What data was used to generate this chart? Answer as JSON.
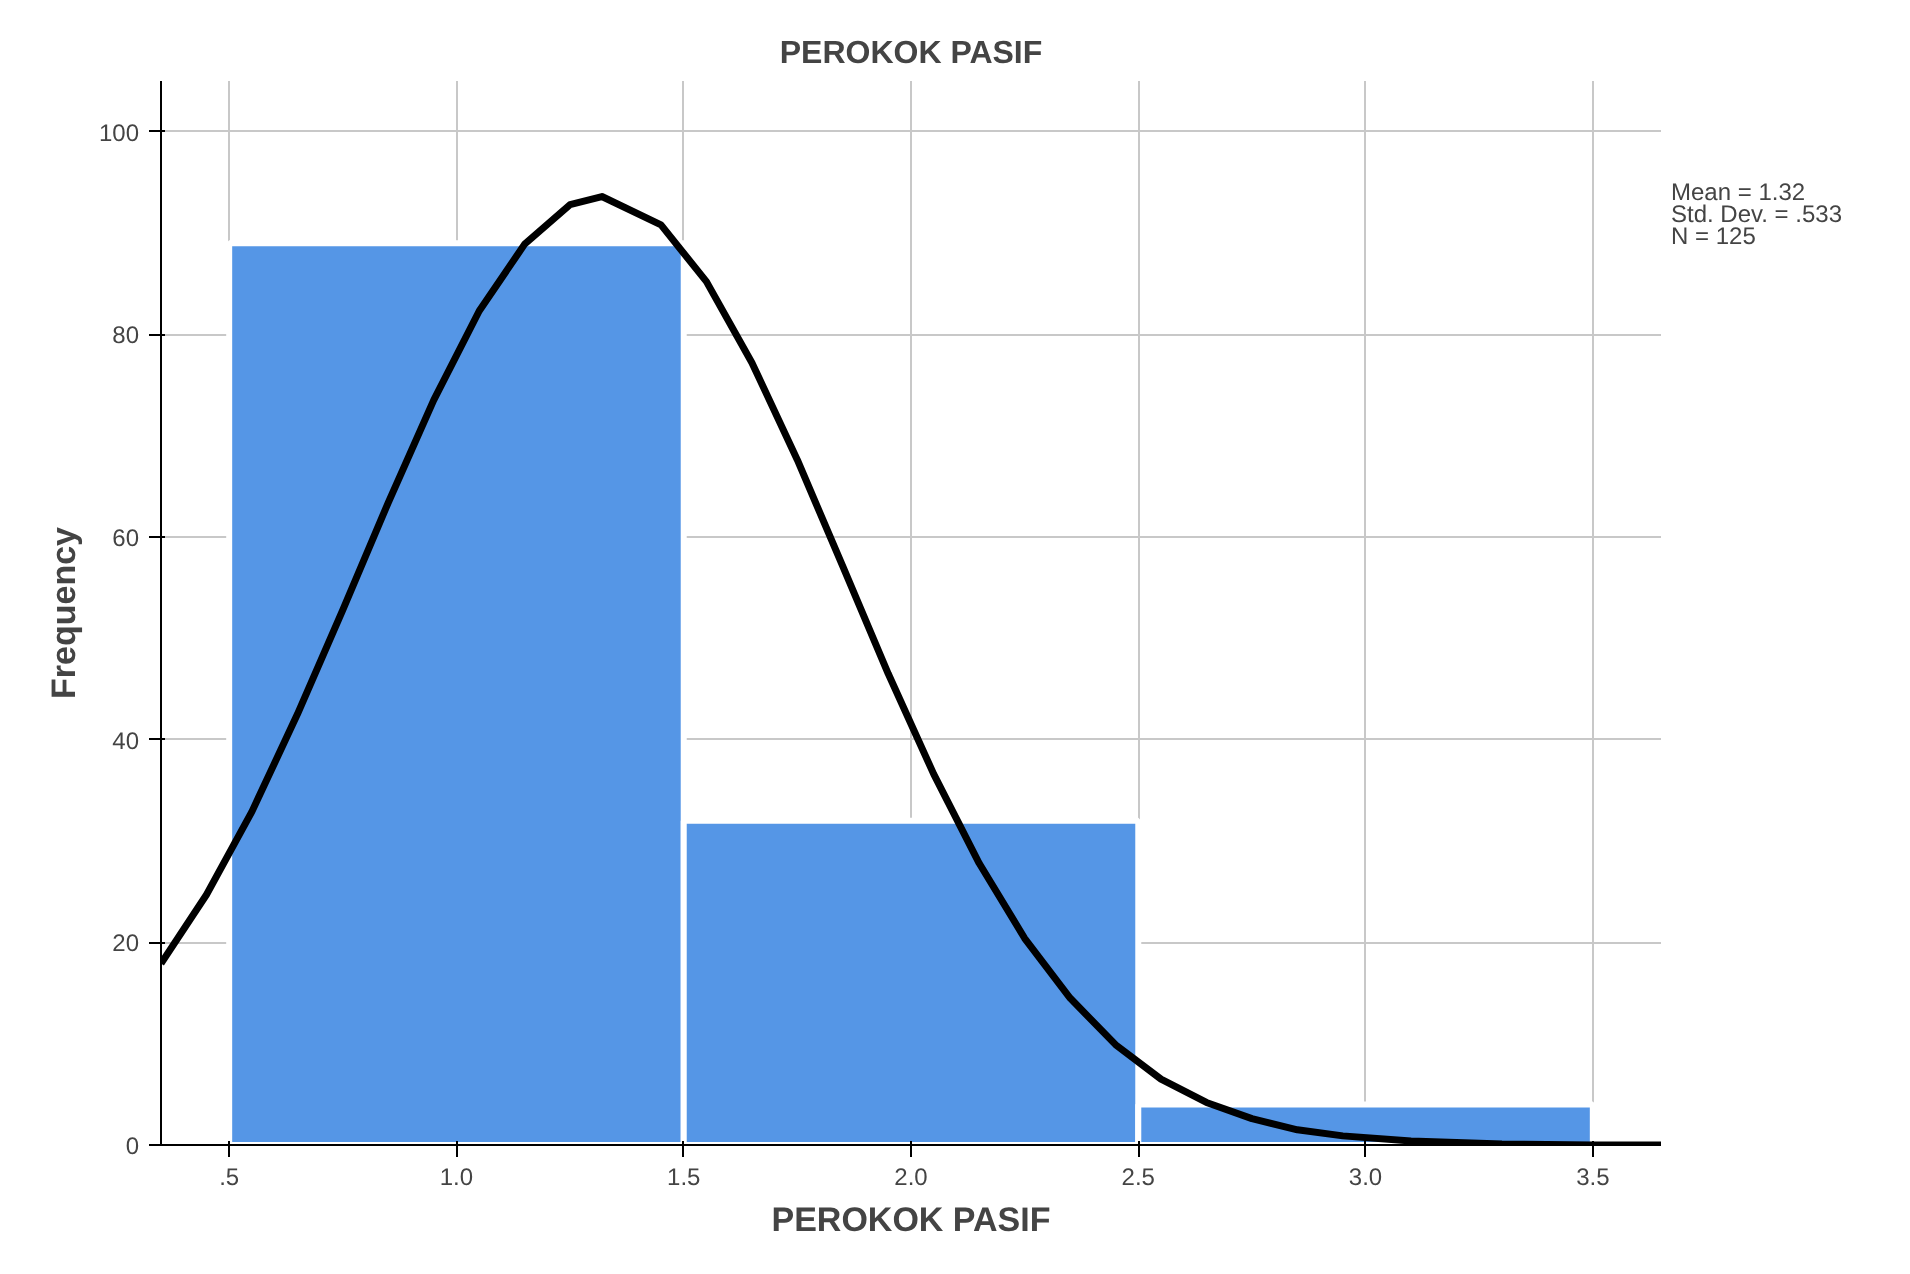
{
  "chart_data": {
    "type": "histogram",
    "title": "PEROKOK PASIF",
    "xlabel": "PEROKOK PASIF",
    "ylabel": "Frequency",
    "bins": [
      0.5,
      1.5,
      2.5,
      3.5
    ],
    "values": [
      89,
      32,
      4
    ],
    "color": "#5596e6",
    "series": [
      {
        "type": "line",
        "color": "#000000",
        "x": [
          0.35,
          0.45,
          0.55,
          0.65,
          0.75,
          0.85,
          0.95,
          1.05,
          1.15,
          1.25,
          1.32,
          1.45,
          1.55,
          1.65,
          1.75,
          1.85,
          1.95,
          2.05,
          2.15,
          2.25,
          2.35,
          2.45,
          2.55,
          2.65,
          2.75,
          2.85,
          2.95,
          3.1,
          3.3,
          3.5,
          3.65
        ],
        "values": [
          17.9,
          24.7,
          32.9,
          42.5,
          52.8,
          63.4,
          73.5,
          82.3,
          88.9,
          92.8,
          93.6,
          90.8,
          85.2,
          77.2,
          67.6,
          57.1,
          46.5,
          36.6,
          27.8,
          20.4,
          14.5,
          9.9,
          6.5,
          4.2,
          2.6,
          1.5,
          0.9,
          0.4,
          0.1,
          0.0,
          0.0
        ]
      }
    ],
    "xlim": [
      0.35,
      3.65
    ],
    "xticks": [
      {
        "value": 0.5,
        "label": ".5"
      },
      {
        "value": 1.0,
        "label": "1.0"
      },
      {
        "value": 1.5,
        "label": "1.5"
      },
      {
        "value": 2.0,
        "label": "2.0"
      },
      {
        "value": 2.5,
        "label": "2.5"
      },
      {
        "value": 3.0,
        "label": "3.0"
      },
      {
        "value": 3.5,
        "label": "3.5"
      }
    ],
    "ylim": [
      0,
      105
    ],
    "yticks": [
      0,
      20,
      40,
      60,
      80,
      100
    ],
    "grid": true,
    "annotations": [
      "Mean = 1.32",
      "Std. Dev. = .533",
      "N = 125"
    ]
  }
}
